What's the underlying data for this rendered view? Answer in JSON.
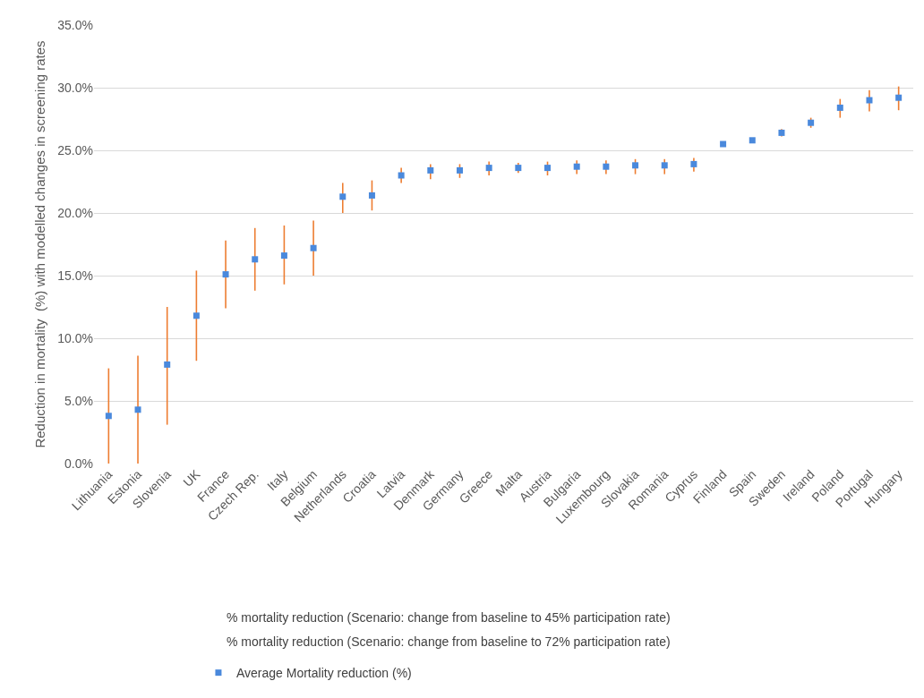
{
  "chart_data": {
    "type": "scatter",
    "ylabel": "Reduction in mortality  (%) with modelled changes in screening rates",
    "categories": [
      "Lithuania",
      "Estonia",
      "Slovenia",
      "UK",
      "France",
      "Czech Rep.",
      "Italy",
      "Belgium",
      "Netherlands",
      "Croatia",
      "Latvia",
      "Denmark",
      "Germany",
      "Greece",
      "Malta",
      "Austria",
      "Bulgaria",
      "Luxembourg",
      "Slovakia",
      "Romania",
      "Cyprus",
      "Finland",
      "Spain",
      "Sweden",
      "Ireland",
      "Poland",
      "Portugal",
      "Hungary"
    ],
    "series": [
      {
        "name": "Average Mortality reduction (%)",
        "color": "#4a89dc",
        "values": [
          3.8,
          4.3,
          7.9,
          11.8,
          15.1,
          16.3,
          16.6,
          17.2,
          21.3,
          21.4,
          23.0,
          23.4,
          23.4,
          23.6,
          23.6,
          23.6,
          23.7,
          23.7,
          23.8,
          23.8,
          23.9,
          25.5,
          25.8,
          26.4,
          27.2,
          28.4,
          29.0,
          29.2
        ],
        "errors": [
          [
            0,
            7.6
          ],
          [
            0,
            8.6
          ],
          [
            3.1,
            12.5
          ],
          [
            8.2,
            15.4
          ],
          [
            12.4,
            17.8
          ],
          [
            13.8,
            18.8
          ],
          [
            14.3,
            19.0
          ],
          [
            15.0,
            19.4
          ],
          [
            20.0,
            22.4
          ],
          [
            20.2,
            22.6
          ],
          [
            22.4,
            23.6
          ],
          [
            22.7,
            23.9
          ],
          [
            22.8,
            23.9
          ],
          [
            23.0,
            24.1
          ],
          [
            23.2,
            24.0
          ],
          [
            23.0,
            24.1
          ],
          [
            23.1,
            24.2
          ],
          [
            23.1,
            24.2
          ],
          [
            23.1,
            24.3
          ],
          [
            23.1,
            24.3
          ],
          [
            23.3,
            24.4
          ],
          null,
          null,
          [
            26.1,
            26.7
          ],
          [
            26.8,
            27.6
          ],
          [
            27.6,
            29.1
          ],
          [
            28.1,
            29.8
          ],
          [
            28.2,
            30.1
          ]
        ]
      }
    ],
    "marker": "square",
    "ylim": [
      0,
      35
    ],
    "yticks": [
      {
        "value": 0,
        "label": "0.0%"
      },
      {
        "value": 5,
        "label": "5.0%"
      },
      {
        "value": 10,
        "label": "10.0%"
      },
      {
        "value": 15,
        "label": "15.0%"
      },
      {
        "value": 20,
        "label": "20.0%"
      },
      {
        "value": 25,
        "label": "25.0%"
      },
      {
        "value": 30,
        "label": "30.0%"
      },
      {
        "value": 35,
        "label": "35.0%"
      }
    ],
    "grid": "y",
    "legend": "bottom",
    "annotations": [
      "% mortality reduction (Scenario: change from baseline to 45% participation rate)",
      "% mortality reduction (Scenario: change from baseline to 72% participation rate)"
    ]
  }
}
